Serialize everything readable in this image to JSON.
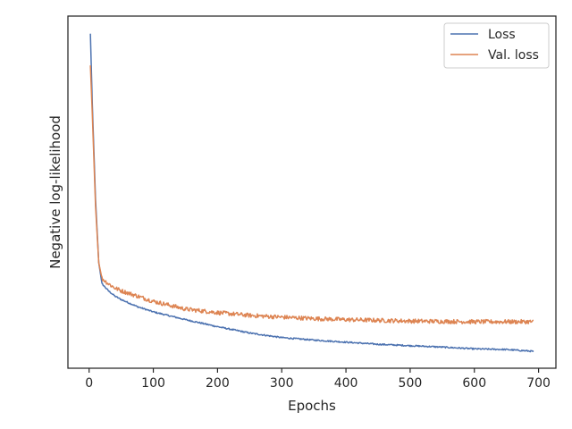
{
  "chart_data": {
    "type": "line",
    "title": "",
    "xlabel": "Epochs",
    "ylabel": "Negative log-likelihood",
    "xlim": [
      -33,
      727
    ],
    "ylim": [
      0,
      1
    ],
    "xticks": [
      0,
      100,
      200,
      300,
      400,
      500,
      600,
      700
    ],
    "y_tick_labels_shown": false,
    "grid": false,
    "legend_position": "top-right",
    "series": [
      {
        "name": "Loss",
        "color": "#4c72b0",
        "points": [
          [
            2,
            0.95
          ],
          [
            5,
            0.75
          ],
          [
            10,
            0.48
          ],
          [
            15,
            0.3
          ],
          [
            20,
            0.24
          ],
          [
            30,
            0.22
          ],
          [
            40,
            0.205
          ],
          [
            50,
            0.195
          ],
          [
            75,
            0.175
          ],
          [
            100,
            0.16
          ],
          [
            150,
            0.138
          ],
          [
            200,
            0.118
          ],
          [
            250,
            0.1
          ],
          [
            300,
            0.087
          ],
          [
            350,
            0.08
          ],
          [
            400,
            0.074
          ],
          [
            450,
            0.068
          ],
          [
            500,
            0.064
          ],
          [
            550,
            0.06
          ],
          [
            600,
            0.055
          ],
          [
            650,
            0.053
          ],
          [
            692,
            0.048
          ]
        ],
        "noise": 0.002
      },
      {
        "name": "Val. loss",
        "color": "#dd8452",
        "points": [
          [
            2,
            0.86
          ],
          [
            5,
            0.72
          ],
          [
            10,
            0.46
          ],
          [
            15,
            0.3
          ],
          [
            20,
            0.255
          ],
          [
            30,
            0.24
          ],
          [
            40,
            0.228
          ],
          [
            50,
            0.22
          ],
          [
            75,
            0.205
          ],
          [
            100,
            0.19
          ],
          [
            150,
            0.168
          ],
          [
            200,
            0.158
          ],
          [
            250,
            0.15
          ],
          [
            300,
            0.145
          ],
          [
            350,
            0.141
          ],
          [
            400,
            0.138
          ],
          [
            450,
            0.136
          ],
          [
            500,
            0.134
          ],
          [
            550,
            0.133
          ],
          [
            600,
            0.132
          ],
          [
            650,
            0.132
          ],
          [
            692,
            0.132
          ]
        ],
        "noise": 0.006
      }
    ]
  }
}
